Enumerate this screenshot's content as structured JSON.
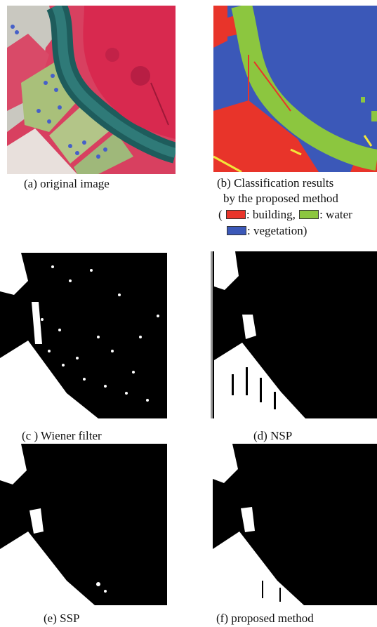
{
  "figure": {
    "panels": [
      {
        "id": "a",
        "caption": "(a) original image"
      },
      {
        "id": "b",
        "caption_lines": [
          "(b) Classification results",
          "by the proposed method"
        ]
      },
      {
        "id": "c",
        "caption": "(c ) Wiener filter"
      },
      {
        "id": "d",
        "caption": "(d) NSP"
      },
      {
        "id": "e",
        "caption": "(e) SSP"
      },
      {
        "id": "f",
        "caption": "(f) proposed method"
      }
    ],
    "legend": {
      "open": "(",
      "building": ": building,",
      "water": ": water",
      "vegetation": ": vegetation)",
      "colors": {
        "building": "#e8342a",
        "water": "#8cc63f",
        "vegetation": "#3b58b8"
      }
    }
  }
}
